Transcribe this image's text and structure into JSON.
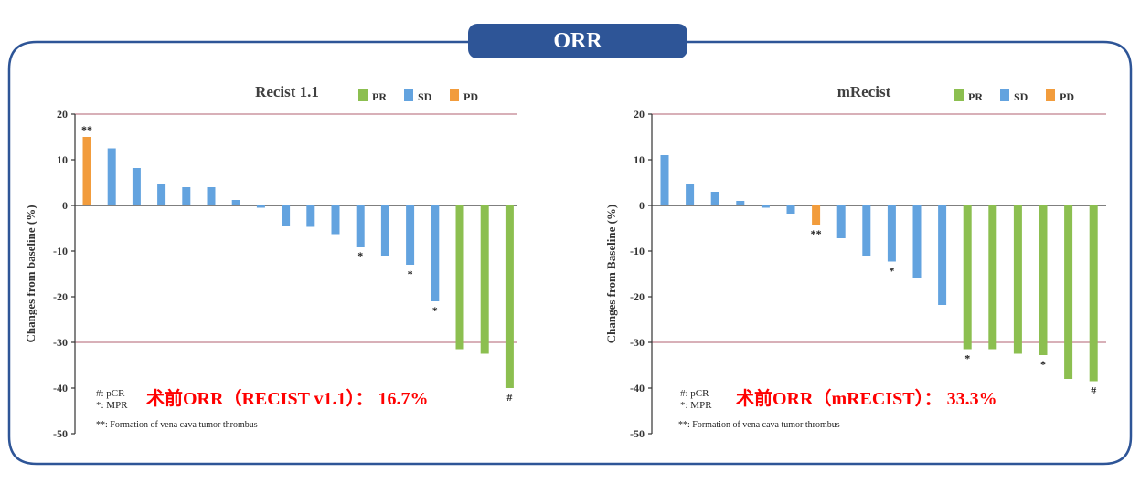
{
  "header": {
    "title": "ORR"
  },
  "colors": {
    "PR": "#8cbf50",
    "SD": "#63a3df",
    "PD": "#f29c3c",
    "frame": "#2e5597",
    "redText": "#ff0000",
    "refLine": "#b06070"
  },
  "chart_data": [
    {
      "type": "bar",
      "title": "Recist 1.1",
      "ylabel": "Changes from baseline (%)",
      "ylim": [
        -50,
        20
      ],
      "yticks": [
        20,
        10,
        0,
        -10,
        -20,
        -30,
        -40,
        -50
      ],
      "reference_lines": [
        20,
        -30
      ],
      "legend": {
        "placement": "top-right",
        "entries": [
          "PR",
          "SD",
          "PD"
        ]
      },
      "bars": [
        {
          "value": 15,
          "category": "PD",
          "mark": "**"
        },
        {
          "value": 12.5,
          "category": "SD",
          "mark": ""
        },
        {
          "value": 8.2,
          "category": "SD",
          "mark": ""
        },
        {
          "value": 4.7,
          "category": "SD",
          "mark": ""
        },
        {
          "value": 4.0,
          "category": "SD",
          "mark": ""
        },
        {
          "value": 4.0,
          "category": "SD",
          "mark": ""
        },
        {
          "value": 1.2,
          "category": "SD",
          "mark": ""
        },
        {
          "value": -0.5,
          "category": "SD",
          "mark": ""
        },
        {
          "value": -4.5,
          "category": "SD",
          "mark": ""
        },
        {
          "value": -4.7,
          "category": "SD",
          "mark": ""
        },
        {
          "value": -6.3,
          "category": "SD",
          "mark": ""
        },
        {
          "value": -9.0,
          "category": "SD",
          "mark": "*"
        },
        {
          "value": -11.0,
          "category": "SD",
          "mark": ""
        },
        {
          "value": -13.0,
          "category": "SD",
          "mark": "*"
        },
        {
          "value": -21.0,
          "category": "SD",
          "mark": "*"
        },
        {
          "value": -31.5,
          "category": "PR",
          "mark": ""
        },
        {
          "value": -32.5,
          "category": "PR",
          "mark": ""
        },
        {
          "value": -40.0,
          "category": "PR",
          "mark": "#"
        }
      ],
      "annotations": {
        "pcr": "#: pCR",
        "mpr": "*: MPR",
        "thrombus": "**: Formation of vena cava tumor thrombus",
        "orr": "术前ORR（RECIST v1.1）： 16.7%"
      }
    },
    {
      "type": "bar",
      "title": "mRecist",
      "ylabel": "Changes from Baseline (%)",
      "ylim": [
        -50,
        20
      ],
      "yticks": [
        20,
        10,
        0,
        -10,
        -20,
        -30,
        -40,
        -50
      ],
      "reference_lines": [
        20,
        -30
      ],
      "legend": {
        "placement": "top-right",
        "entries": [
          "PR",
          "SD",
          "PD"
        ]
      },
      "bars": [
        {
          "value": 11,
          "category": "SD",
          "mark": ""
        },
        {
          "value": 4.6,
          "category": "SD",
          "mark": ""
        },
        {
          "value": 3.0,
          "category": "SD",
          "mark": ""
        },
        {
          "value": 1.0,
          "category": "SD",
          "mark": ""
        },
        {
          "value": -0.5,
          "category": "SD",
          "mark": ""
        },
        {
          "value": -1.8,
          "category": "SD",
          "mark": ""
        },
        {
          "value": -4.2,
          "category": "PD",
          "mark": "**"
        },
        {
          "value": -7.2,
          "category": "SD",
          "mark": ""
        },
        {
          "value": -11.0,
          "category": "SD",
          "mark": ""
        },
        {
          "value": -12.3,
          "category": "SD",
          "mark": "*"
        },
        {
          "value": -16.0,
          "category": "SD",
          "mark": ""
        },
        {
          "value": -21.8,
          "category": "SD",
          "mark": ""
        },
        {
          "value": -31.5,
          "category": "PR",
          "mark": "*"
        },
        {
          "value": -31.5,
          "category": "PR",
          "mark": ""
        },
        {
          "value": -32.5,
          "category": "PR",
          "mark": ""
        },
        {
          "value": -32.8,
          "category": "PR",
          "mark": "*"
        },
        {
          "value": -38.0,
          "category": "PR",
          "mark": ""
        },
        {
          "value": -38.5,
          "category": "PR",
          "mark": "#"
        }
      ],
      "annotations": {
        "pcr": "#: pCR",
        "mpr": "*: MPR",
        "thrombus": "**: Formation of vena cava tumor thrombus",
        "orr": "术前ORR（mRECIST）： 33.3%"
      }
    }
  ]
}
